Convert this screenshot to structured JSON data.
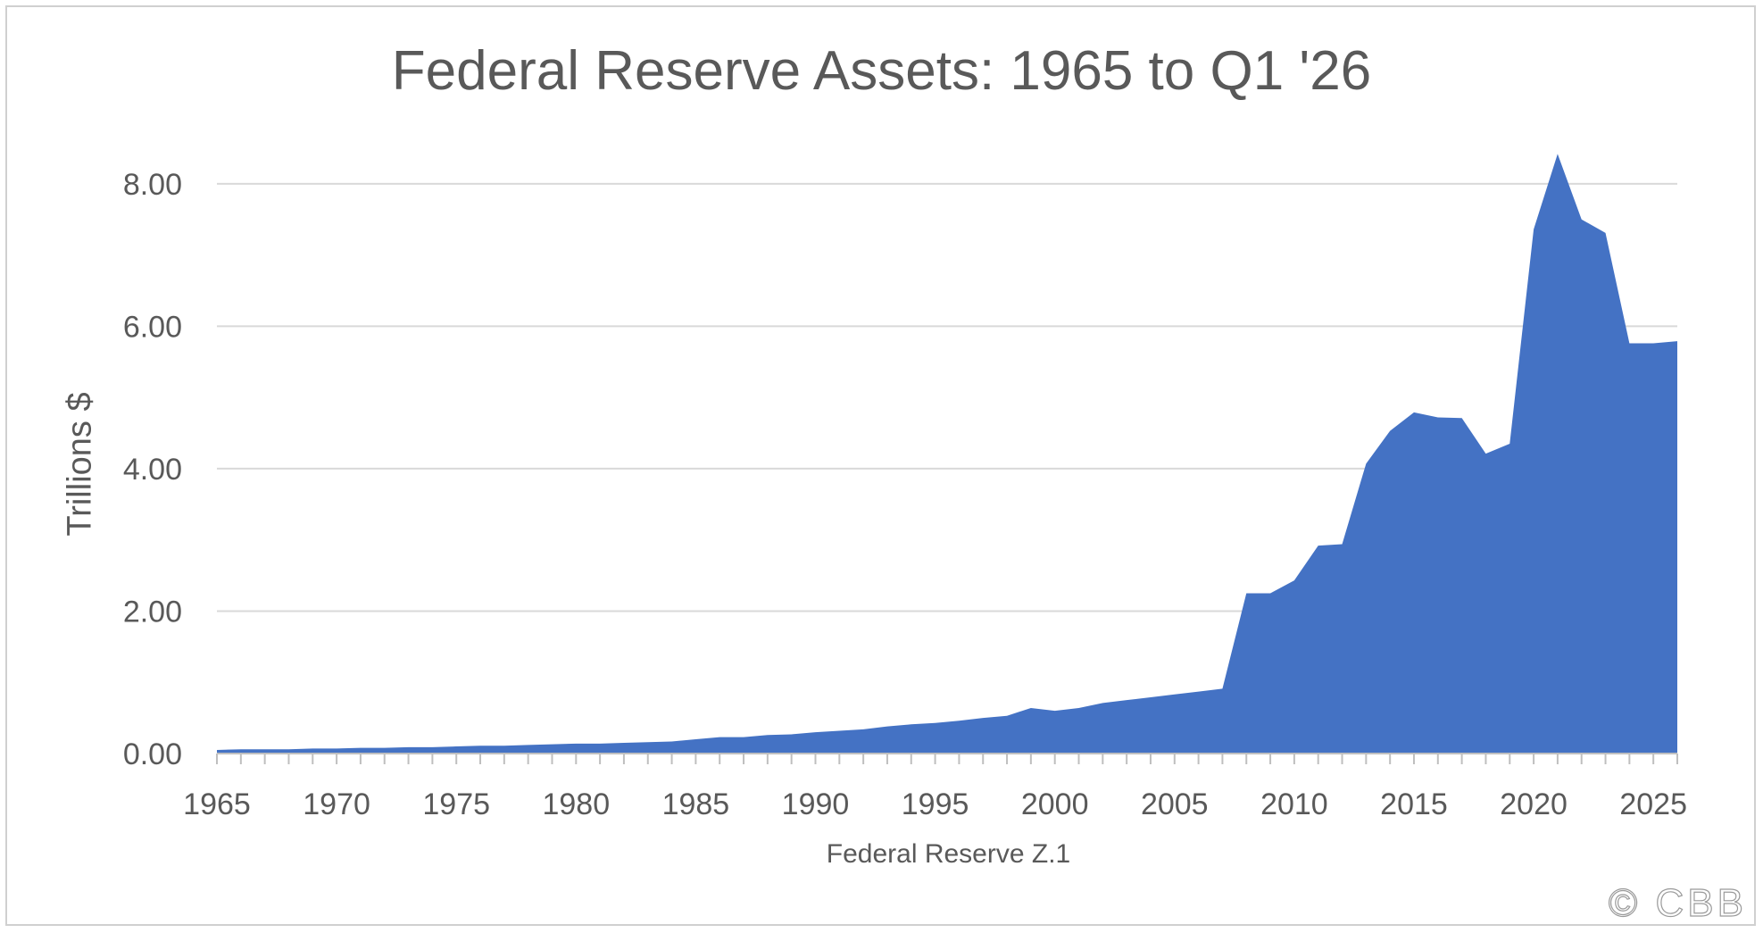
{
  "chart_data": {
    "type": "area",
    "title": "Federal Reserve Assets: 1965 to Q1 '26",
    "ylabel": "Trillions $",
    "xlabel": "Federal Reserve Z.1",
    "xlim": [
      1965,
      2026
    ],
    "ylim": [
      0,
      8.8
    ],
    "yticks": [
      "0.00",
      "2.00",
      "4.00",
      "6.00",
      "8.00"
    ],
    "xticks": [
      "1965",
      "1970",
      "1975",
      "1980",
      "1985",
      "1990",
      "1995",
      "2000",
      "2005",
      "2010",
      "2015",
      "2020",
      "2025"
    ],
    "grid": true,
    "color": "#4472C4",
    "points": [
      [
        1965,
        0.05
      ],
      [
        1966,
        0.06
      ],
      [
        1967,
        0.06
      ],
      [
        1968,
        0.06
      ],
      [
        1969,
        0.07
      ],
      [
        1970,
        0.07
      ],
      [
        1971,
        0.08
      ],
      [
        1972,
        0.08
      ],
      [
        1973,
        0.09
      ],
      [
        1974,
        0.09
      ],
      [
        1975,
        0.1
      ],
      [
        1976,
        0.11
      ],
      [
        1977,
        0.11
      ],
      [
        1978,
        0.12
      ],
      [
        1979,
        0.13
      ],
      [
        1980,
        0.14
      ],
      [
        1981,
        0.14
      ],
      [
        1982,
        0.15
      ],
      [
        1983,
        0.16
      ],
      [
        1984,
        0.17
      ],
      [
        1985,
        0.2
      ],
      [
        1986,
        0.23
      ],
      [
        1987,
        0.23
      ],
      [
        1988,
        0.26
      ],
      [
        1989,
        0.27
      ],
      [
        1990,
        0.3
      ],
      [
        1991,
        0.32
      ],
      [
        1992,
        0.34
      ],
      [
        1993,
        0.38
      ],
      [
        1994,
        0.41
      ],
      [
        1995,
        0.43
      ],
      [
        1996,
        0.46
      ],
      [
        1997,
        0.5
      ],
      [
        1998,
        0.53
      ],
      [
        1999,
        0.64
      ],
      [
        2000,
        0.6
      ],
      [
        2001,
        0.64
      ],
      [
        2002,
        0.71
      ],
      [
        2003,
        0.75
      ],
      [
        2004,
        0.79
      ],
      [
        2005,
        0.83
      ],
      [
        2006,
        0.87
      ],
      [
        2007,
        0.91
      ],
      [
        2008,
        2.25
      ],
      [
        2009,
        2.25
      ],
      [
        2010,
        2.43
      ],
      [
        2011,
        2.92
      ],
      [
        2012,
        2.94
      ],
      [
        2013,
        4.07
      ],
      [
        2014,
        4.53
      ],
      [
        2015,
        4.79
      ],
      [
        2016,
        4.72
      ],
      [
        2017,
        4.71
      ],
      [
        2018,
        4.21
      ],
      [
        2019,
        4.35
      ],
      [
        2020,
        7.36
      ],
      [
        2021,
        8.42
      ],
      [
        2022,
        7.5
      ],
      [
        2023,
        7.31
      ],
      [
        2024,
        5.76
      ],
      [
        2025,
        5.76
      ],
      [
        2026,
        5.79
      ]
    ]
  },
  "footer": {
    "copyright": "© CBB"
  }
}
